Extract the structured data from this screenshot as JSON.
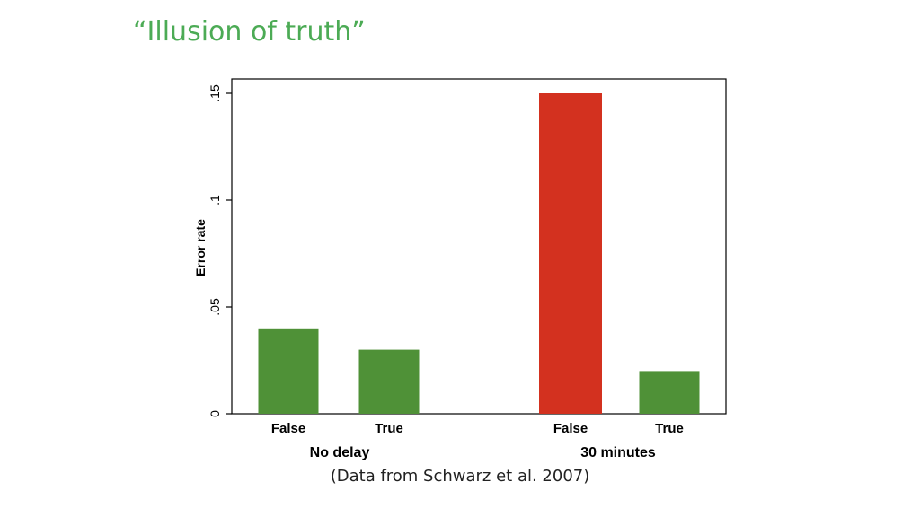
{
  "slide": {
    "title": "“Illusion of truth”",
    "title_color": "#4cab55",
    "caption": "(Data from Schwarz et al. 2007)"
  },
  "chart_data": {
    "type": "bar",
    "title": "",
    "ylabel": "Error rate",
    "ylim": [
      0,
      0.15
    ],
    "yticks": [
      {
        "value": 0,
        "label": "0"
      },
      {
        "value": 0.05,
        "label": ".05"
      },
      {
        "value": 0.1,
        "label": ".1"
      },
      {
        "value": 0.15,
        "label": ".15"
      }
    ],
    "grid": false,
    "colors": {
      "normal": "#4f9137",
      "highlight": "#d3311f"
    },
    "groups": [
      {
        "name": "No delay",
        "bars": [
          {
            "category": "False",
            "value": 0.04,
            "color": "#4f9137"
          },
          {
            "category": "True",
            "value": 0.03,
            "color": "#4f9137"
          }
        ]
      },
      {
        "name": "30 minutes",
        "bars": [
          {
            "category": "False",
            "value": 0.15,
            "color": "#d3311f"
          },
          {
            "category": "True",
            "value": 0.02,
            "color": "#4f9137"
          }
        ]
      }
    ]
  }
}
